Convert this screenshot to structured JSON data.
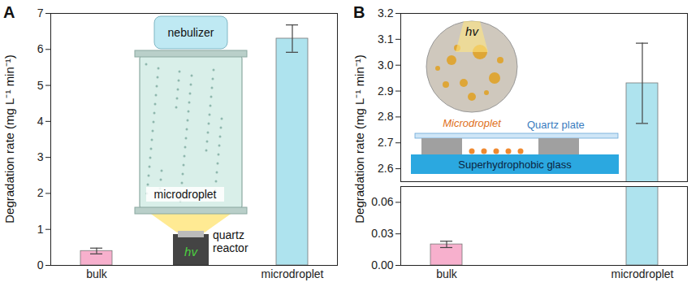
{
  "chart_data": [
    {
      "panel": "A",
      "type": "bar",
      "y_label": "Degradation rate (mg L⁻¹ min⁻¹)",
      "categories": [
        "bulk",
        "microdroplet"
      ],
      "values": [
        0.4,
        6.3
      ],
      "errors": [
        0.08,
        0.38
      ],
      "colors": [
        "#f7b0cd",
        "#aee3ee"
      ],
      "ylim": [
        0,
        7
      ],
      "yticks": [
        0,
        1,
        2,
        3,
        4,
        5,
        6,
        7
      ],
      "annotations": [
        "nebulizer",
        "microdroplet",
        "quartz reactor",
        "hv"
      ]
    },
    {
      "panel": "B",
      "type": "bar",
      "y_label": "Degradation rate (mg L⁻¹ min⁻¹)",
      "categories": [
        "bulk",
        "microdroplet"
      ],
      "values": [
        0.02,
        2.93
      ],
      "errors": [
        0.003,
        0.155
      ],
      "colors": [
        "#f7b0cd",
        "#aee3ee"
      ],
      "y_segments": [
        {
          "ylim": [
            0,
            0.075
          ],
          "yticks": [
            {
              "value": 0,
              "label": "0.00"
            },
            {
              "value": 0.03,
              "label": "0.03"
            },
            {
              "value": 0.06,
              "label": "0.06"
            }
          ]
        },
        {
          "ylim": [
            2.55,
            3.2
          ],
          "yticks": [
            2.6,
            2.7,
            2.8,
            2.9,
            {
              "value": 3,
              "label": "3.0"
            },
            3.1,
            3.2
          ]
        }
      ],
      "annotations": [
        "hv",
        "Microdroplet",
        "Quartz plate",
        "Superhydrophobic glass"
      ]
    }
  ]
}
